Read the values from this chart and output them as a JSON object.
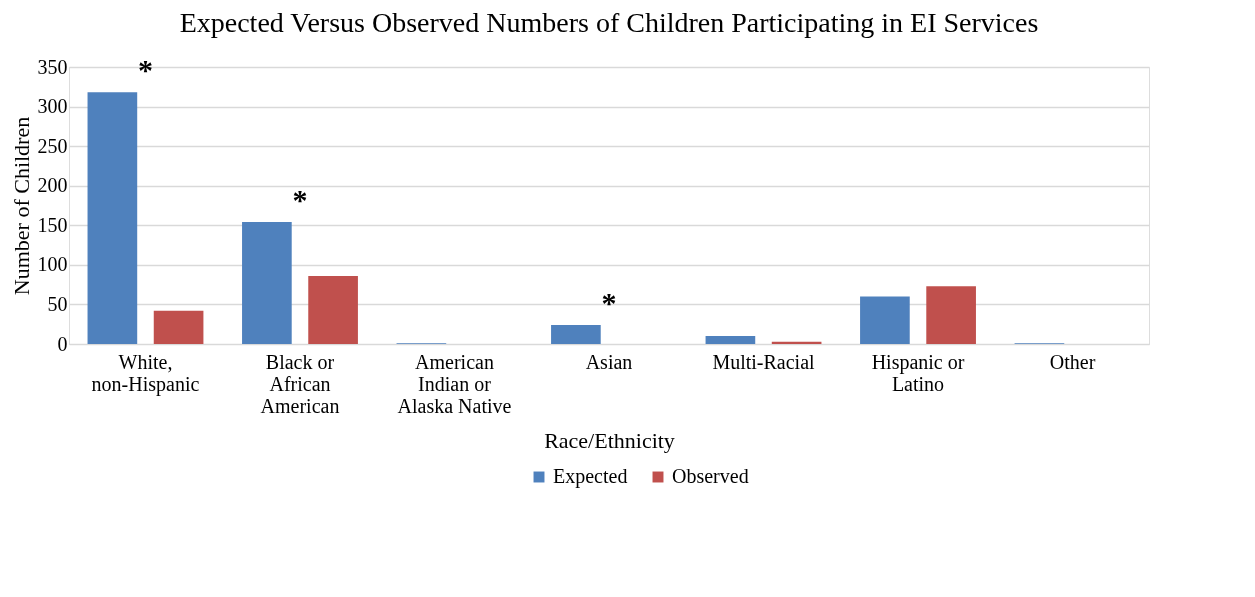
{
  "chart_data": {
    "type": "bar",
    "title": "Expected Versus Observed Numbers of Children Participating in EI Services",
    "xlabel": "Race/Ethnicity",
    "ylabel": "Number of Children",
    "categories": [
      "White, non-Hispanic",
      "Black or African American",
      "American Indian or Alaska Native",
      "Asian",
      "Multi-Racial",
      "Hispanic or Latino",
      "Other"
    ],
    "series": [
      {
        "name": "Expected",
        "color": "#4f81bd",
        "values": [
          318,
          154,
          1,
          24,
          10,
          60,
          1
        ]
      },
      {
        "name": "Observed",
        "color": "#c0504d",
        "values": [
          42,
          86,
          0,
          0,
          3,
          73,
          0
        ]
      }
    ],
    "ylim": [
      0,
      350
    ],
    "yticks": [
      0,
      50,
      100,
      150,
      200,
      250,
      300,
      350
    ],
    "grid": "y",
    "legend": "bottom",
    "annotations": [
      "*",
      "*",
      "*"
    ]
  }
}
